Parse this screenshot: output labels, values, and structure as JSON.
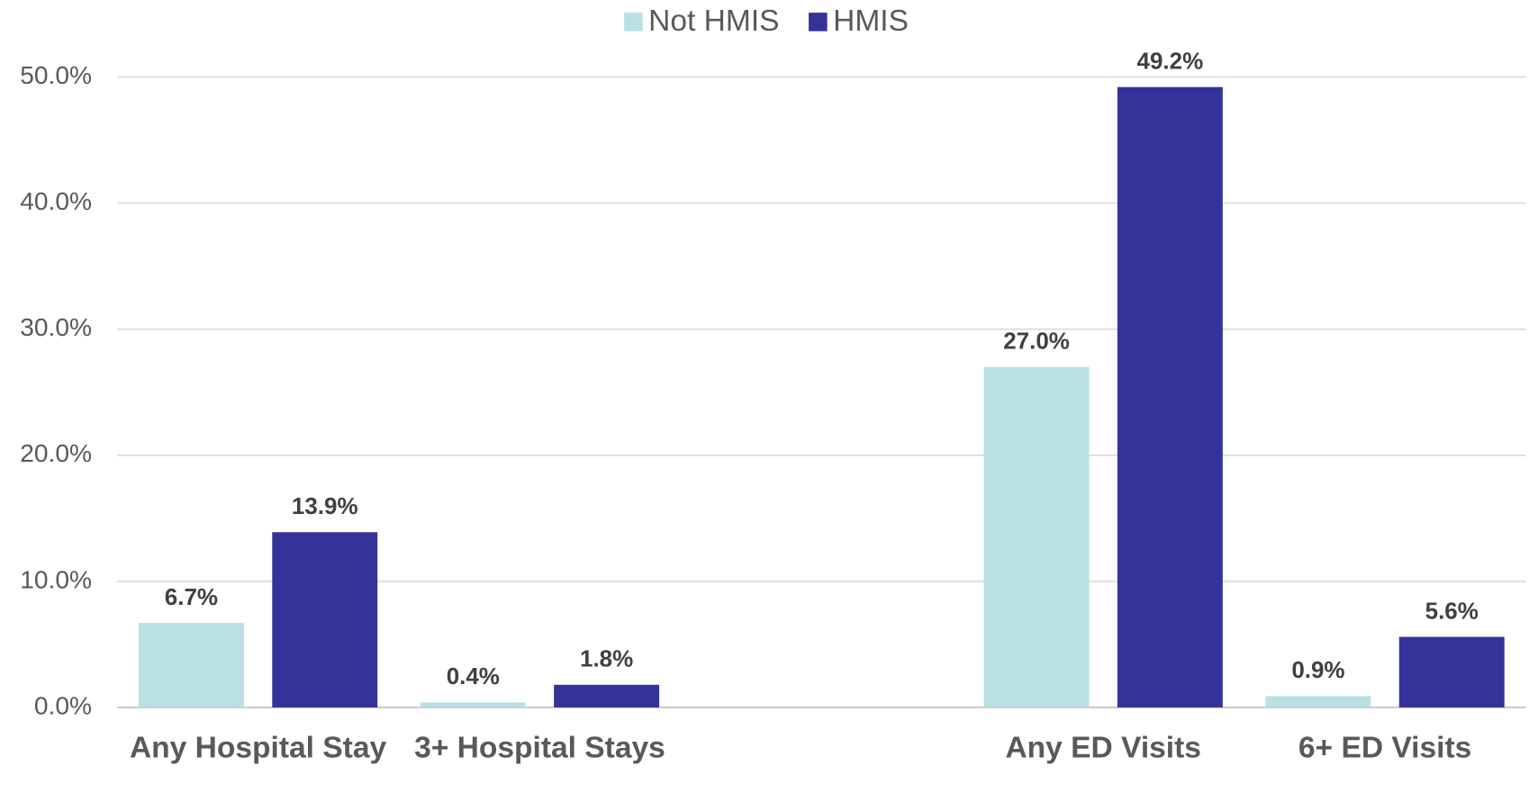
{
  "chart_data": {
    "type": "bar",
    "categories": [
      "Any Hospital Stay",
      "3+ Hospital Stays",
      null,
      "Any ED Visits",
      "6+ ED Visits"
    ],
    "series": [
      {
        "name": "Not HMIS",
        "color": "#b9e0e3",
        "values": [
          6.7,
          0.4,
          null,
          27.0,
          0.9
        ],
        "value_labels": [
          "6.7%",
          "0.4%",
          null,
          "27.0%",
          "0.9%"
        ]
      },
      {
        "name": "HMIS",
        "color": "#343399",
        "values": [
          13.9,
          1.8,
          null,
          49.2,
          5.6
        ],
        "value_labels": [
          "13.9%",
          "1.8%",
          null,
          "49.2%",
          "5.6%"
        ]
      }
    ],
    "ylim": [
      0,
      50
    ],
    "yticks": [
      {
        "value": 0,
        "label": "0.0%"
      },
      {
        "value": 10,
        "label": "10.0%"
      },
      {
        "value": 20,
        "label": "20.0%"
      },
      {
        "value": 30,
        "label": "30.0%"
      },
      {
        "value": 40,
        "label": "40.0%"
      },
      {
        "value": 50,
        "label": "50.0%"
      }
    ],
    "grid": true,
    "legend": "top"
  }
}
